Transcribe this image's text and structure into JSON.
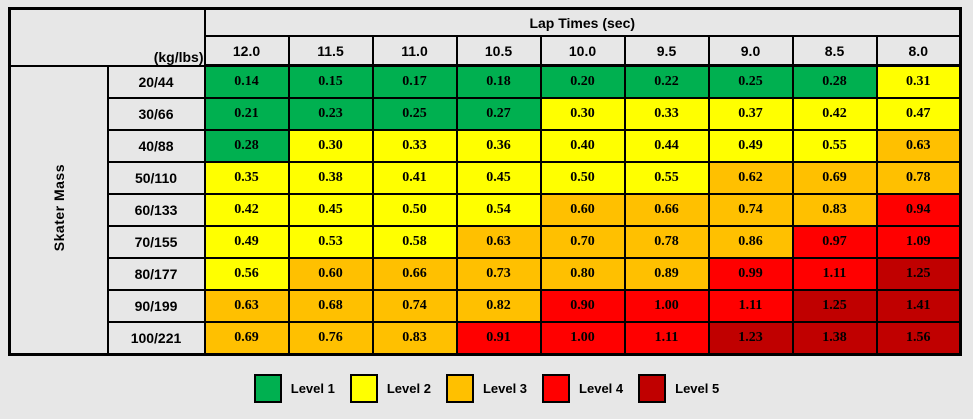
{
  "page": {
    "background": "#e7e7e7"
  },
  "chart_data": {
    "type": "heatmap",
    "title": "Lap Times (sec)",
    "y_axis_label": "Skater Mass",
    "y_unit_label": "(kg/lbs)",
    "x_categories": [
      "12.0",
      "11.5",
      "11.0",
      "10.5",
      "10.0",
      "9.5",
      "9.0",
      "8.5",
      "8.0"
    ],
    "y_categories": [
      "20/44",
      "30/66",
      "40/88",
      "50/110",
      "60/133",
      "70/155",
      "80/177",
      "90/199",
      "100/221"
    ],
    "level_colors": {
      "1": "#00b050",
      "2": "#ffff00",
      "3": "#ffc000",
      "4": "#ff0000",
      "5": "#c00000"
    },
    "rows": [
      {
        "label": "20/44",
        "values": [
          "0.14",
          "0.15",
          "0.17",
          "0.18",
          "0.20",
          "0.22",
          "0.25",
          "0.28",
          "0.31"
        ],
        "levels": [
          1,
          1,
          1,
          1,
          1,
          1,
          1,
          1,
          2
        ]
      },
      {
        "label": "30/66",
        "values": [
          "0.21",
          "0.23",
          "0.25",
          "0.27",
          "0.30",
          "0.33",
          "0.37",
          "0.42",
          "0.47"
        ],
        "levels": [
          1,
          1,
          1,
          1,
          2,
          2,
          2,
          2,
          2
        ]
      },
      {
        "label": "40/88",
        "values": [
          "0.28",
          "0.30",
          "0.33",
          "0.36",
          "0.40",
          "0.44",
          "0.49",
          "0.55",
          "0.63"
        ],
        "levels": [
          1,
          2,
          2,
          2,
          2,
          2,
          2,
          2,
          3
        ]
      },
      {
        "label": "50/110",
        "values": [
          "0.35",
          "0.38",
          "0.41",
          "0.45",
          "0.50",
          "0.55",
          "0.62",
          "0.69",
          "0.78"
        ],
        "levels": [
          2,
          2,
          2,
          2,
          2,
          2,
          3,
          3,
          3
        ]
      },
      {
        "label": "60/133",
        "values": [
          "0.42",
          "0.45",
          "0.50",
          "0.54",
          "0.60",
          "0.66",
          "0.74",
          "0.83",
          "0.94"
        ],
        "levels": [
          2,
          2,
          2,
          2,
          3,
          3,
          3,
          3,
          4
        ]
      },
      {
        "label": "70/155",
        "values": [
          "0.49",
          "0.53",
          "0.58",
          "0.63",
          "0.70",
          "0.78",
          "0.86",
          "0.97",
          "1.09"
        ],
        "levels": [
          2,
          2,
          2,
          3,
          3,
          3,
          3,
          4,
          4
        ]
      },
      {
        "label": "80/177",
        "values": [
          "0.56",
          "0.60",
          "0.66",
          "0.73",
          "0.80",
          "0.89",
          "0.99",
          "1.11",
          "1.25"
        ],
        "levels": [
          2,
          3,
          3,
          3,
          3,
          3,
          4,
          4,
          5
        ]
      },
      {
        "label": "90/199",
        "values": [
          "0.63",
          "0.68",
          "0.74",
          "0.82",
          "0.90",
          "1.00",
          "1.11",
          "1.25",
          "1.41"
        ],
        "levels": [
          3,
          3,
          3,
          3,
          4,
          4,
          4,
          5,
          5
        ]
      },
      {
        "label": "100/221",
        "values": [
          "0.69",
          "0.76",
          "0.83",
          "0.91",
          "1.00",
          "1.11",
          "1.23",
          "1.38",
          "1.56"
        ],
        "levels": [
          3,
          3,
          3,
          4,
          4,
          4,
          5,
          5,
          5
        ]
      }
    ],
    "legend": [
      {
        "label": "Level 1",
        "level": 1
      },
      {
        "label": "Level 2",
        "level": 2
      },
      {
        "label": "Level 3",
        "level": 3
      },
      {
        "label": "Level 4",
        "level": 4
      },
      {
        "label": "Level 5",
        "level": 5
      }
    ],
    "layout": {
      "legend_position": "bottom",
      "grid": true
    }
  }
}
